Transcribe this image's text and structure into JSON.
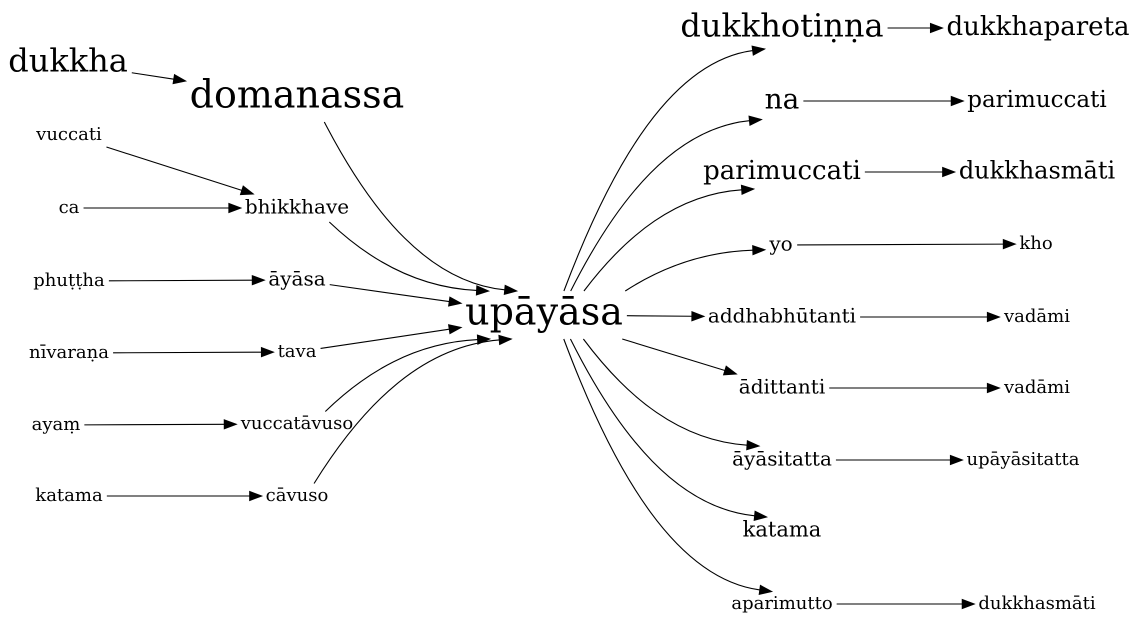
{
  "graph": {
    "center": "upāyāsa",
    "nodes": {
      "dukkha": "dukkha",
      "domanassa": "domanassa",
      "vuccati": "vuccati",
      "ca": "ca",
      "bhikkhave": "bhikkhave",
      "phuttha": "phuṭṭha",
      "ayasa": "āyāsa",
      "nivarana": "nīvaraṇa",
      "tava": "tava",
      "ayam": "ayaṃ",
      "vuccatavuso": "vuccatāvuso",
      "katama_left": "katama",
      "cavuso": "cāvuso",
      "upayasa": "upāyāsa",
      "dukkhotinna": "dukkhotiṇṇa",
      "dukkhapareta": "dukkhapareta",
      "na": "na",
      "parimuccati_1": "parimuccati",
      "parimuccati_2": "parimuccati",
      "dukkhasmati_1": "dukkhasmāti",
      "yo": "yo",
      "kho": "kho",
      "addhabhutanti": "addhabhūtanti",
      "vadami_1": "vadāmi",
      "adittanti": "ādittanti",
      "vadami_2": "vadāmi",
      "ayasitatta": "āyāsitatta",
      "upayasitatta": "upāyāsitatta",
      "katama_right": "katama",
      "aparimutto": "aparimutto",
      "dukkhasmati_2": "dukkhasmāti"
    },
    "edges": [
      [
        "dukkha",
        "domanassa"
      ],
      [
        "vuccati",
        "bhikkhave"
      ],
      [
        "ca",
        "bhikkhave"
      ],
      [
        "phuttha",
        "ayasa"
      ],
      [
        "nivarana",
        "tava"
      ],
      [
        "ayam",
        "vuccatavuso"
      ],
      [
        "katama_left",
        "cavuso"
      ],
      [
        "domanassa",
        "upayasa"
      ],
      [
        "bhikkhave",
        "upayasa"
      ],
      [
        "ayasa",
        "upayasa"
      ],
      [
        "tava",
        "upayasa"
      ],
      [
        "vuccatavuso",
        "upayasa"
      ],
      [
        "cavuso",
        "upayasa"
      ],
      [
        "upayasa",
        "dukkhotinna"
      ],
      [
        "upayasa",
        "na"
      ],
      [
        "upayasa",
        "parimuccati_1"
      ],
      [
        "upayasa",
        "yo"
      ],
      [
        "upayasa",
        "addhabhutanti"
      ],
      [
        "upayasa",
        "adittanti"
      ],
      [
        "upayasa",
        "ayasitatta"
      ],
      [
        "upayasa",
        "katama_right"
      ],
      [
        "upayasa",
        "aparimutto"
      ],
      [
        "dukkhotinna",
        "dukkhapareta"
      ],
      [
        "na",
        "parimuccati_2"
      ],
      [
        "parimuccati_1",
        "dukkhasmati_1"
      ],
      [
        "yo",
        "kho"
      ],
      [
        "addhabhutanti",
        "vadami_1"
      ],
      [
        "adittanti",
        "vadami_2"
      ],
      [
        "ayasitatta",
        "upayasitatta"
      ],
      [
        "aparimutto",
        "dukkhasmati_2"
      ]
    ]
  }
}
